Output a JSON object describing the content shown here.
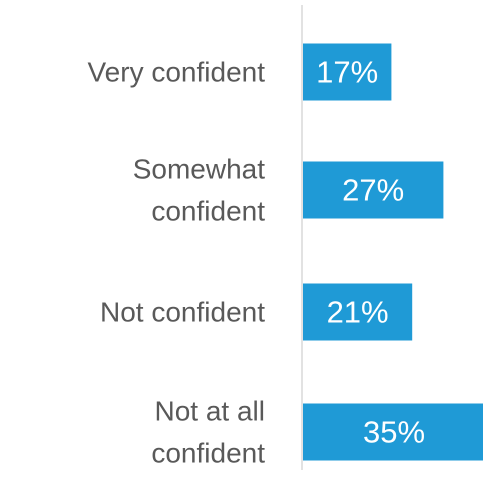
{
  "chart_data": {
    "type": "bar",
    "orientation": "horizontal",
    "categories": [
      [
        "Very confident"
      ],
      [
        "Somewhat",
        "confident"
      ],
      [
        "Not confident"
      ],
      [
        "Not at all",
        "confident"
      ]
    ],
    "values": [
      17,
      27,
      21,
      35
    ],
    "value_labels": [
      "17%",
      "27%",
      "21%",
      "35%"
    ],
    "unit": "%",
    "bar_color": "#1F9AD6",
    "axis_line_color": "#D9D9D9",
    "label_color": "#595959",
    "grid": false,
    "legend": "none"
  }
}
